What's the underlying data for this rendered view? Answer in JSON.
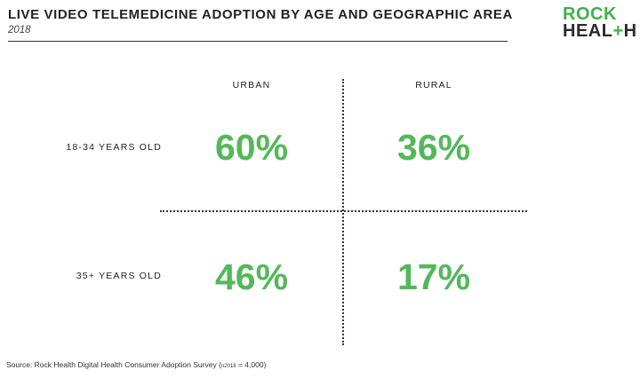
{
  "header": {
    "title": "LIVE VIDEO TELEMEDICINE ADOPTION BY AGE AND GEOGRAPHIC AREA",
    "subtitle": "2018"
  },
  "logo": {
    "line1": "ROCK",
    "line2_pre": "HEAL",
    "line2_plus": "+",
    "line2_post": "H",
    "color_green": "#3fb14a",
    "color_dark": "#2b2b2b"
  },
  "chart_data": {
    "type": "table",
    "title": "LIVE VIDEO TELEMEDICINE ADOPTION BY AGE AND GEOGRAPHIC AREA",
    "subtitle": "2018",
    "columns": [
      "URBAN",
      "RURAL"
    ],
    "rows": [
      "18-34 YEARS OLD",
      "35+ YEARS OLD"
    ],
    "values": [
      [
        "60%",
        "36%"
      ],
      [
        "46%",
        "17%"
      ]
    ],
    "value_color": "#54b85a",
    "grid": "dotted cross divider"
  },
  "footer": {
    "source_pre": "Source: Rock Health Digital Health Consumer Adoption Survey (",
    "source_n": "n",
    "source_year": "2018",
    "source_post": " = 4,000)"
  }
}
